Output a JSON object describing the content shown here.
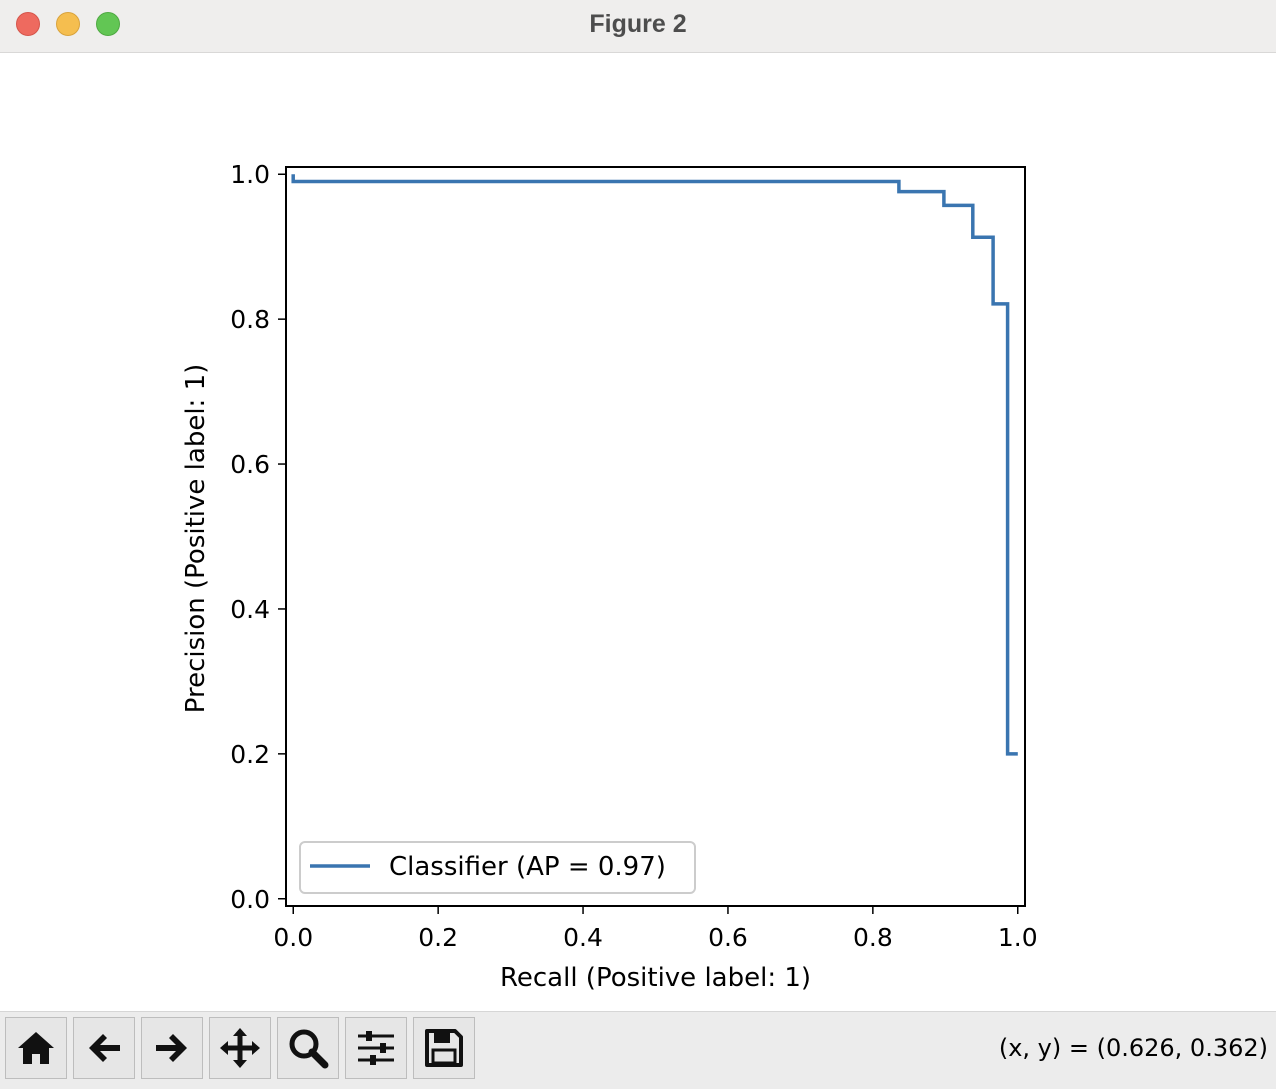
{
  "window": {
    "title": "Figure 2"
  },
  "toolbar": {
    "buttons": [
      {
        "name": "home-button",
        "icon": "home-icon"
      },
      {
        "name": "back-button",
        "icon": "arrow-left-icon"
      },
      {
        "name": "forward-button",
        "icon": "arrow-right-icon"
      },
      {
        "name": "pan-button",
        "icon": "move-icon"
      },
      {
        "name": "zoom-button",
        "icon": "magnifier-icon"
      },
      {
        "name": "configure-subplots-button",
        "icon": "sliders-icon"
      },
      {
        "name": "save-button",
        "icon": "floppy-disk-icon"
      }
    ],
    "coords": "(x, y) = (0.626, 0.362)"
  },
  "chart_data": {
    "type": "line",
    "drawstyle": "steps-post",
    "xlabel": "Recall (Positive label: 1)",
    "ylabel": "Precision (Positive label: 1)",
    "xlim": [
      -0.01,
      1.01
    ],
    "ylim": [
      -0.01,
      1.01
    ],
    "xticks": [
      "0.0",
      "0.2",
      "0.4",
      "0.6",
      "0.8",
      "1.0"
    ],
    "yticks": [
      "0.0",
      "0.2",
      "0.4",
      "0.6",
      "0.8",
      "1.0"
    ],
    "legend_loc": "lower left",
    "grid": false,
    "series": [
      {
        "name": "Classifier (AP = 0.97)",
        "color": "#3a75b0",
        "x": [
          0.0,
          0.0,
          0.836,
          0.836,
          0.898,
          0.898,
          0.938,
          0.938,
          0.966,
          0.966,
          0.986,
          0.986,
          1.0
        ],
        "y": [
          1.0,
          0.99,
          0.99,
          0.976,
          0.976,
          0.957,
          0.957,
          0.913,
          0.913,
          0.821,
          0.821,
          0.2,
          0.2
        ]
      }
    ]
  }
}
